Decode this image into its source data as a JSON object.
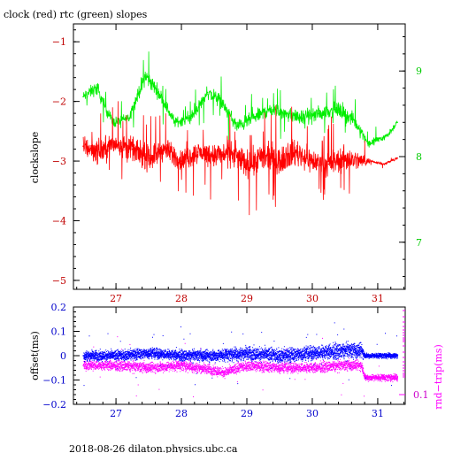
{
  "title": "clock (red) rtc (green) slopes",
  "footer": "2018-08-26  dilaton.physics.ubc.ca",
  "colors": {
    "clock": "#ff0000",
    "clock_tick": "#c00000",
    "rtc": "#00ee00",
    "rtc_tick": "#00cc00",
    "offset": "#0000ff",
    "offset_tick": "#0000cc",
    "roundtrip": "#ff00ff",
    "roundtrip_tick": "#cc00cc"
  },
  "chart_data": [
    {
      "type": "line",
      "title": "clock (red) rtc (green) slopes",
      "ylabel": "clockslope",
      "x_ticks": [
        27,
        28,
        29,
        30,
        31
      ],
      "xlim": [
        26.35,
        31.42
      ],
      "ylim": [
        -5.15,
        -0.7
      ],
      "y_ticks": [
        -5,
        -4,
        -3,
        -2,
        -1
      ],
      "y2lim": [
        6.45,
        9.55
      ],
      "y2_ticks": [
        7,
        8,
        9
      ],
      "grid": false,
      "series": [
        {
          "name": "clock",
          "x": [
            26.5,
            26.75,
            27.0,
            27.25,
            27.5,
            27.75,
            28.0,
            28.25,
            28.5,
            28.75,
            29.0,
            29.25,
            29.5,
            29.75,
            30.0,
            30.25,
            30.5,
            30.75,
            30.9,
            31.1,
            31.3
          ],
          "y": [
            -2.75,
            -2.85,
            -2.7,
            -2.8,
            -2.95,
            -2.8,
            -3.0,
            -2.85,
            -2.9,
            -2.85,
            -3.05,
            -2.95,
            -2.95,
            -2.85,
            -3.0,
            -3.05,
            -2.95,
            -3.0,
            -3.0,
            -3.05,
            -2.95
          ],
          "spread": [
            0.45,
            0.5,
            0.45,
            0.45,
            0.5,
            0.45,
            0.45,
            0.45,
            0.5,
            0.5,
            0.55,
            0.6,
            0.6,
            0.55,
            0.5,
            0.5,
            0.5,
            0.35,
            0.05,
            0.05,
            0.05
          ]
        },
        {
          "name": "rtc",
          "axis": "right",
          "x": [
            26.5,
            26.7,
            26.95,
            27.2,
            27.45,
            27.65,
            27.9,
            28.15,
            28.4,
            28.6,
            28.85,
            29.1,
            29.35,
            29.6,
            29.85,
            30.1,
            30.35,
            30.6,
            30.75,
            30.85,
            31.0,
            31.15,
            31.3
          ],
          "y": [
            8.7,
            8.8,
            8.4,
            8.45,
            8.95,
            8.75,
            8.4,
            8.45,
            8.75,
            8.65,
            8.35,
            8.45,
            8.55,
            8.5,
            8.45,
            8.5,
            8.55,
            8.45,
            8.3,
            8.15,
            8.2,
            8.25,
            8.4
          ],
          "spread": [
            0.15,
            0.2,
            0.15,
            0.15,
            0.25,
            0.2,
            0.15,
            0.15,
            0.2,
            0.2,
            0.2,
            0.2,
            0.2,
            0.2,
            0.2,
            0.2,
            0.2,
            0.2,
            0.15,
            0.1,
            0.1,
            0.1,
            0.1
          ]
        }
      ]
    },
    {
      "type": "scatter",
      "ylabel": "offset(ms)",
      "y2label": "rnd−trip(ms)",
      "x_ticks": [
        27,
        28,
        29,
        30,
        31
      ],
      "xlim": [
        26.35,
        31.42
      ],
      "ylim": [
        -0.2,
        0.2
      ],
      "y_ticks": [
        -0.2,
        -0.1,
        0,
        0.1,
        0.2
      ],
      "y_tick_labels": [
        "−0.2",
        "−0.1",
        "0",
        "0.1",
        "0.2"
      ],
      "y2_ticks_labelled": [
        "0.1"
      ],
      "grid": false,
      "series": [
        {
          "name": "offset",
          "x": [
            26.5,
            27.0,
            27.5,
            28.0,
            28.5,
            29.0,
            29.5,
            30.0,
            30.5,
            30.75,
            30.8,
            31.3
          ],
          "y": [
            0.0,
            0.0,
            0.01,
            0.0,
            0.0,
            0.01,
            0.0,
            0.01,
            0.02,
            0.02,
            0.0,
            0.0
          ],
          "spread": [
            0.03,
            0.03,
            0.03,
            0.03,
            0.035,
            0.04,
            0.04,
            0.04,
            0.045,
            0.045,
            0.015,
            0.015
          ]
        },
        {
          "name": "roundtrip",
          "x": [
            26.5,
            27.0,
            27.5,
            28.0,
            28.5,
            28.65,
            29.0,
            29.5,
            30.0,
            30.5,
            30.75,
            30.8,
            31.3
          ],
          "y": [
            -0.04,
            -0.04,
            -0.05,
            -0.04,
            -0.06,
            -0.07,
            -0.04,
            -0.05,
            -0.05,
            -0.04,
            -0.04,
            -0.09,
            -0.09
          ],
          "spread": [
            0.03,
            0.03,
            0.03,
            0.03,
            0.03,
            0.03,
            0.03,
            0.03,
            0.03,
            0.03,
            0.03,
            0.02,
            0.02
          ]
        }
      ]
    }
  ]
}
